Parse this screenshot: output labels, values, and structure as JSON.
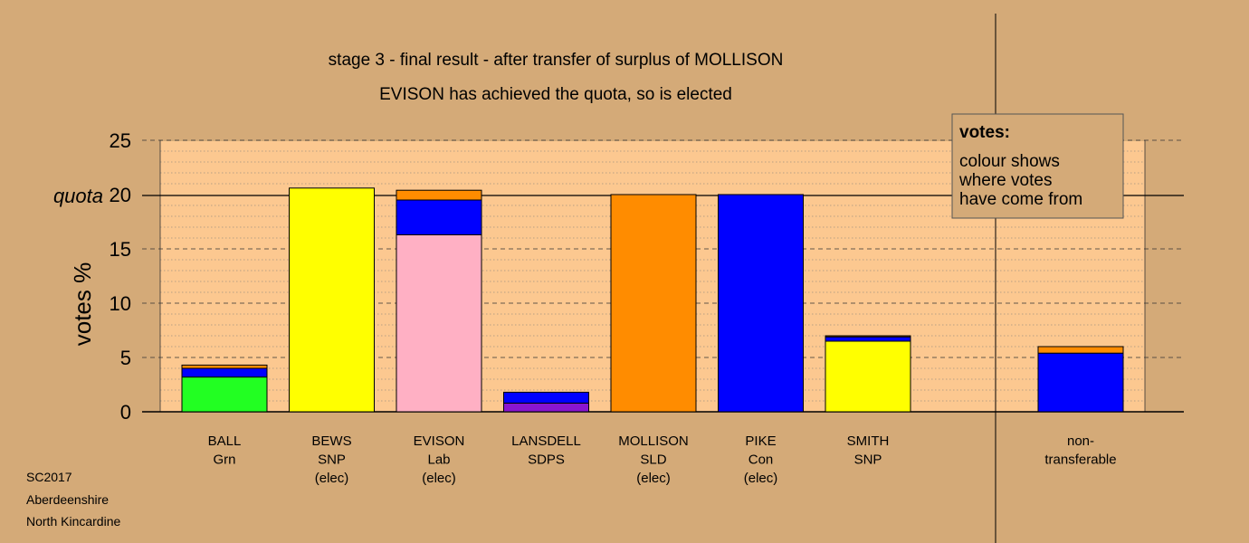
{
  "chart_data": {
    "type": "bar",
    "title": "stage 3 - final result - after transfer of surplus of MOLLISON",
    "subtitle": "EVISON has achieved the quota, so is elected",
    "ylabel": "votes %",
    "quota_label": "quota",
    "quota": 20,
    "ylim": [
      0,
      25
    ],
    "yticks": [
      0,
      5,
      10,
      15,
      20,
      25
    ],
    "grid": "dashed every 5, dotted every 1",
    "legend": {
      "position": "top-right",
      "title": "votes:",
      "lines": [
        "colour shows",
        "where votes",
        "have come from"
      ]
    },
    "colors": {
      "background": "#d4aa78",
      "plot_area": "#fcc890"
    },
    "candidates": [
      {
        "name": "BALL",
        "party": "Grn",
        "status": "",
        "segments": [
          {
            "value": 3.2,
            "color": "#22ff22"
          },
          {
            "value": 0.8,
            "color": "#0000ff"
          },
          {
            "value": 0.3,
            "color": "#ff8c00"
          }
        ]
      },
      {
        "name": "BEWS",
        "party": "SNP",
        "status": "(elec)",
        "segments": [
          {
            "value": 20.6,
            "color": "#ffff00"
          }
        ]
      },
      {
        "name": "EVISON",
        "party": "Lab",
        "status": "(elec)",
        "segments": [
          {
            "value": 16.3,
            "color": "#ffb0c4"
          },
          {
            "value": 3.2,
            "color": "#0000ff"
          },
          {
            "value": 0.9,
            "color": "#ff8c00"
          }
        ]
      },
      {
        "name": "LANSDELL",
        "party": "SDPS",
        "status": "",
        "segments": [
          {
            "value": 0.8,
            "color": "#8a16d0"
          },
          {
            "value": 1.0,
            "color": "#0000ff"
          }
        ]
      },
      {
        "name": "MOLLISON",
        "party": "SLD",
        "status": "(elec)",
        "segments": [
          {
            "value": 20.0,
            "color": "#ff8c00"
          }
        ]
      },
      {
        "name": "PIKE",
        "party": "Con",
        "status": "(elec)",
        "segments": [
          {
            "value": 20.0,
            "color": "#0000ff"
          }
        ]
      },
      {
        "name": "SMITH",
        "party": "SNP",
        "status": "",
        "segments": [
          {
            "value": 6.5,
            "color": "#ffff00"
          },
          {
            "value": 0.4,
            "color": "#0000ff"
          },
          {
            "value": 0.1,
            "color": "#ff8c00"
          }
        ]
      }
    ],
    "non_transferable": {
      "label_line1": "non-",
      "label_line2": "transferable",
      "segments": [
        {
          "value": 5.4,
          "color": "#0000ff"
        },
        {
          "value": 0.6,
          "color": "#ff8c00"
        }
      ]
    }
  },
  "footer": {
    "line1": "SC2017",
    "line2": "Aberdeenshire",
    "line3": "North Kincardine"
  }
}
